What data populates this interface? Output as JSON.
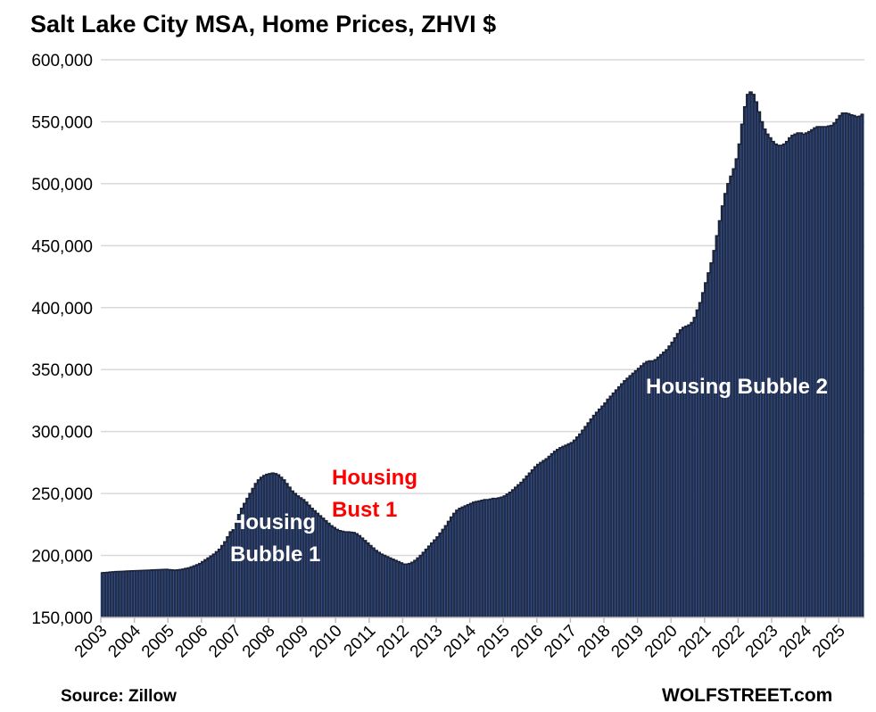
{
  "chart_data": {
    "type": "bar",
    "title": "Salt Lake City MSA, Home Prices, ZHVI $",
    "xlabel": "",
    "ylabel": "",
    "ylim": [
      150000,
      600000
    ],
    "y_ticks": [
      "150,000",
      "200,000",
      "250,000",
      "300,000",
      "350,000",
      "400,000",
      "450,000",
      "500,000",
      "550,000",
      "600,000"
    ],
    "x_tick_labels": [
      "2003",
      "2004",
      "2005",
      "2006",
      "2007",
      "2008",
      "2009",
      "2010",
      "2011",
      "2012",
      "2013",
      "2014",
      "2015",
      "2016",
      "2017",
      "2018",
      "2019",
      "2020",
      "2021",
      "2022",
      "2023",
      "2024",
      "2025"
    ],
    "x_start": "2003-01",
    "x_frequency": "monthly",
    "grid": true,
    "colors": {
      "bar_fill": "#222e4b",
      "bar_edge": "#3a5fa3",
      "grid": "#d9d9d9",
      "bust_label": "#ff0000",
      "bubble_label": "#ffffff"
    },
    "values": [
      186000,
      186200,
      186400,
      186600,
      186800,
      187000,
      187100,
      187200,
      187300,
      187400,
      187500,
      187600,
      187700,
      187800,
      187900,
      188000,
      188100,
      188200,
      188300,
      188400,
      188500,
      188600,
      188700,
      188800,
      188500,
      188300,
      188200,
      188300,
      188600,
      189000,
      189500,
      190000,
      190800,
      191600,
      192500,
      193500,
      195000,
      196500,
      198000,
      199500,
      201000,
      203000,
      205000,
      208000,
      211000,
      215000,
      219000,
      223000,
      228000,
      233000,
      238000,
      242000,
      246000,
      250000,
      254000,
      258000,
      261000,
      263000,
      264500,
      265500,
      266000,
      266500,
      266000,
      265000,
      263000,
      261000,
      258000,
      255000,
      252000,
      250000,
      248000,
      246500,
      245000,
      243000,
      240500,
      238000,
      236000,
      234000,
      232000,
      230000,
      228000,
      226000,
      224000,
      222500,
      221000,
      220000,
      219500,
      219000,
      219000,
      218800,
      218500,
      217500,
      216000,
      214000,
      212000,
      210000,
      208000,
      206000,
      204000,
      202500,
      201000,
      200000,
      199000,
      198000,
      197000,
      196000,
      195000,
      194000,
      193000,
      193000,
      193500,
      194500,
      196000,
      198000,
      200000,
      202500,
      205000,
      207500,
      210000,
      212500,
      215000,
      218000,
      221000,
      224000,
      227500,
      231000,
      234000,
      236500,
      238000,
      239000,
      240000,
      241000,
      242000,
      243000,
      243500,
      244000,
      244500,
      245000,
      245000,
      245500,
      246000,
      246000,
      246500,
      247000,
      248000,
      249500,
      251000,
      253000,
      255000,
      257000,
      259000,
      261500,
      264000,
      266500,
      269000,
      271500,
      273500,
      275000,
      276500,
      278000,
      280000,
      282000,
      284000,
      285500,
      287000,
      288000,
      289000,
      290000,
      291000,
      293000,
      295500,
      298000,
      301000,
      304000,
      307000,
      310000,
      313000,
      315500,
      318000,
      320500,
      323000,
      326000,
      328500,
      331000,
      333500,
      336000,
      338500,
      341000,
      343000,
      345000,
      347000,
      349000,
      351000,
      353000,
      355000,
      356500,
      357000,
      357000,
      358000,
      360000,
      362000,
      364000,
      366000,
      369000,
      372000,
      375500,
      379000,
      382000,
      384000,
      385000,
      386000,
      388000,
      392000,
      398000,
      404000,
      412000,
      420000,
      428000,
      436000,
      446000,
      458000,
      470000,
      482000,
      492000,
      500000,
      506000,
      512000,
      520000,
      532000,
      548000,
      562000,
      572000,
      574000,
      572000,
      566000,
      558000,
      550000,
      544000,
      540000,
      537000,
      534000,
      532000,
      531000,
      531000,
      532000,
      534000,
      537000,
      539000,
      540000,
      541000,
      541000,
      540000,
      541000,
      542000,
      543500,
      545000,
      546000,
      546000,
      546000,
      546000,
      546500,
      547000,
      549000,
      552000,
      555000,
      557000,
      557000,
      556500,
      555500,
      555000,
      554000,
      554500,
      556000
    ],
    "annotations": [
      {
        "text_lines": [
          "Housing",
          "Bubble 1"
        ],
        "color": "#ffffff"
      },
      {
        "text_lines": [
          "Housing",
          "Bust 1"
        ],
        "color": "#ff0000"
      },
      {
        "text_lines": [
          "Housing Bubble 2"
        ],
        "color": "#ffffff"
      }
    ],
    "source": "Source: Zillow",
    "brand": "WOLFSTREET.com"
  }
}
